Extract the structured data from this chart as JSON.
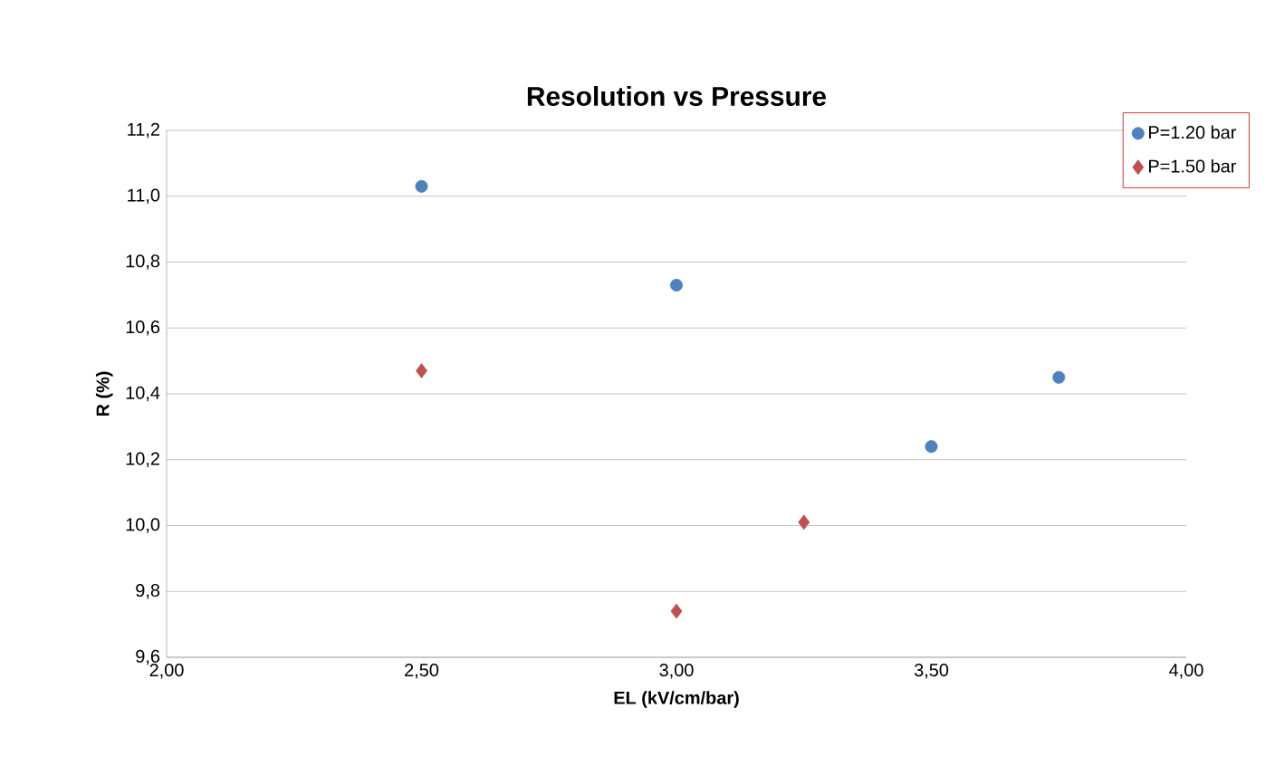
{
  "chart_data": {
    "type": "scatter",
    "title": "Resolution vs Pressure",
    "xlabel": "EL (kV/cm/bar)",
    "ylabel": "R (%)",
    "xlim": [
      2.0,
      4.0
    ],
    "ylim": [
      9.6,
      11.2
    ],
    "xticks": [
      {
        "value": 2.0,
        "label": "2,00"
      },
      {
        "value": 2.5,
        "label": "2,50"
      },
      {
        "value": 3.0,
        "label": "3,00"
      },
      {
        "value": 3.5,
        "label": "3,50"
      },
      {
        "value": 4.0,
        "label": "4,00"
      }
    ],
    "yticks": [
      {
        "value": 9.6,
        "label": "9,6"
      },
      {
        "value": 9.8,
        "label": "9,8"
      },
      {
        "value": 10.0,
        "label": "10,0"
      },
      {
        "value": 10.2,
        "label": "10,2"
      },
      {
        "value": 10.4,
        "label": "10,4"
      },
      {
        "value": 10.6,
        "label": "10,6"
      },
      {
        "value": 10.8,
        "label": "10,8"
      },
      {
        "value": 11.0,
        "label": "11,0"
      },
      {
        "value": 11.2,
        "label": "11,2"
      }
    ],
    "grid": "y",
    "legend": "right",
    "series": [
      {
        "name": "P=1.20 bar",
        "color": "#4f81bd",
        "marker": "circle",
        "x": [
          2.5,
          3.0,
          3.5,
          3.75
        ],
        "values": [
          11.03,
          10.73,
          10.24,
          10.45
        ]
      },
      {
        "name": "P=1.50 bar",
        "color": "#c0504d",
        "marker": "diamond",
        "x": [
          2.5,
          3.0,
          3.25
        ],
        "values": [
          10.47,
          9.74,
          10.01
        ]
      }
    ]
  }
}
